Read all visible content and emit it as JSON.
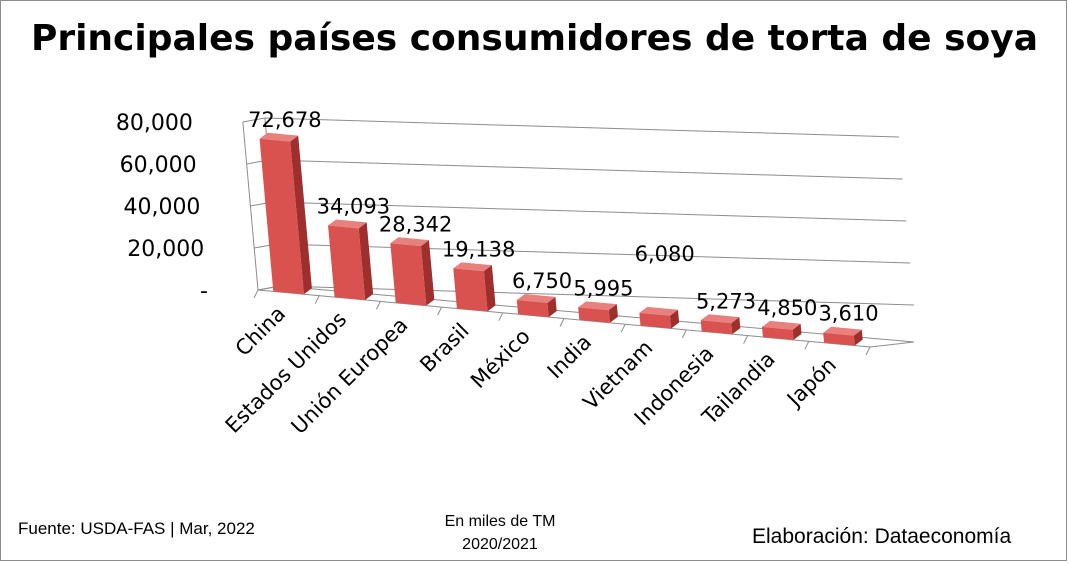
{
  "footer": {
    "source": "Fuente:  USDA-FAS | Mar, 2022",
    "units": "En miles de TM",
    "period": "2020/2021",
    "credit": "Elaboración: Dataeconomía"
  },
  "chart_data": {
    "type": "bar",
    "title": "Principales países consumidores de torta de soya",
    "categories": [
      "China",
      "Estados Unidos",
      "Unión Europea",
      "Brasil",
      "México",
      "India",
      "Vietnam",
      "Indonesia",
      "Tailandia",
      "Japón"
    ],
    "values": [
      72678,
      34093,
      28342,
      19138,
      6750,
      5995,
      6080,
      5273,
      4850,
      3610
    ],
    "value_labels": [
      "72,678",
      "34,093",
      "28,342",
      "19,138",
      "6,750",
      "5,995",
      "6,080",
      "5,273",
      "4,850",
      "3,610"
    ],
    "ylim": [
      0,
      80000
    ],
    "yticks": [
      0,
      20000,
      40000,
      60000,
      80000
    ],
    "ytick_labels": [
      "-",
      "20,000",
      "40,000",
      "60,000",
      "80,000"
    ],
    "grid": true,
    "style": "3d-column",
    "bar_color": "#d9524f"
  }
}
